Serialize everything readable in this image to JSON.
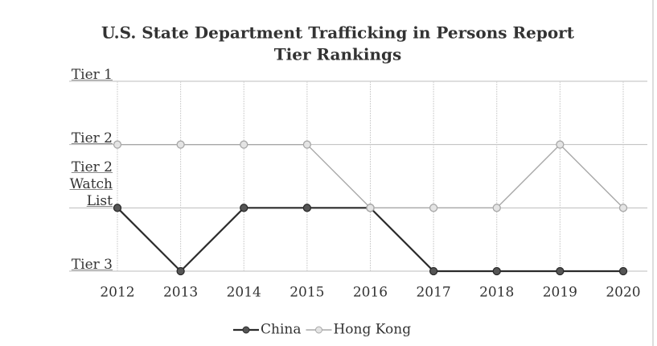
{
  "chart_data": {
    "type": "line",
    "title": "U.S. State Department Trafficking in Persons Report",
    "subtitle": "Tier Rankings",
    "categories": [
      "2012",
      "2013",
      "2014",
      "2015",
      "2016",
      "2017",
      "2018",
      "2019",
      "2020"
    ],
    "series": [
      {
        "name": "China",
        "color": "#2b2b2b",
        "values": [
          2,
          1,
          2,
          2,
          2,
          1,
          1,
          1,
          1
        ]
      },
      {
        "name": "Hong Kong",
        "color": "#a8a8a8",
        "values": [
          3,
          3,
          3,
          3,
          2,
          2,
          2,
          3,
          2
        ]
      }
    ],
    "ylim": [
      1,
      4
    ],
    "yticks": [
      {
        "value": 4,
        "label": "Tier 1"
      },
      {
        "value": 3,
        "label": "Tier 2"
      },
      {
        "value": 2,
        "label": "Tier 2 Watch List"
      },
      {
        "value": 1,
        "label": "Tier 3"
      }
    ],
    "grid": true,
    "legend": "bottom"
  }
}
